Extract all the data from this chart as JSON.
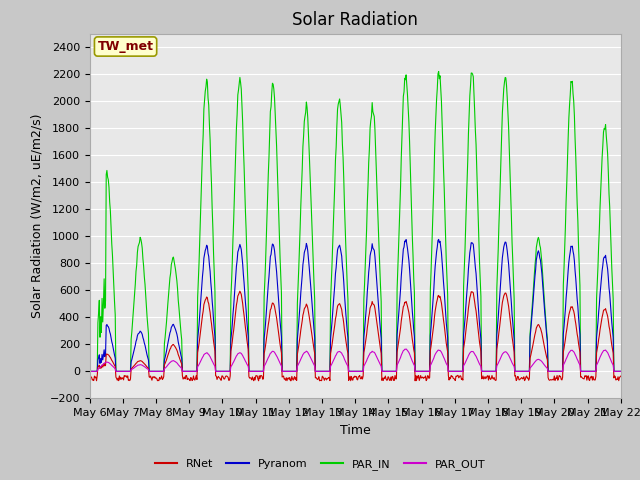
{
  "title": "Solar Radiation",
  "ylabel": "Solar Radiation (W/m2, uE/m2/s)",
  "xlabel": "Time",
  "ylim": [
    -200,
    2500
  ],
  "yticks": [
    -200,
    0,
    200,
    400,
    600,
    800,
    1000,
    1200,
    1400,
    1600,
    1800,
    2000,
    2200,
    2400
  ],
  "start_day": 6,
  "end_day": 21,
  "n_days": 16,
  "colors": {
    "RNet": "#cc0000",
    "Pyranom": "#0000cc",
    "PAR_IN": "#00cc00",
    "PAR_OUT": "#cc00cc"
  },
  "legend_labels": [
    "RNet",
    "Pyranom",
    "PAR_IN",
    "PAR_OUT"
  ],
  "annotation_text": "TW_met",
  "annotation_color": "#800000",
  "annotation_bg": "#ffffcc",
  "annotation_border": "#999900",
  "fig_bg": "#c8c8c8",
  "plot_bg": "#e8e8e8",
  "grid_color": "#ffffff",
  "title_fontsize": 12,
  "label_fontsize": 9,
  "tick_fontsize": 8,
  "day_peaks_PAR": [
    1500,
    1000,
    850,
    2200,
    2200,
    2150,
    2000,
    2050,
    2000,
    2250,
    2250,
    2250,
    2250,
    1000,
    2200,
    1850
  ],
  "day_peaks_Pyr": [
    350,
    300,
    350,
    950,
    950,
    950,
    950,
    950,
    950,
    1000,
    990,
    970,
    990,
    900,
    950,
    870
  ],
  "day_peaks_RNet": [
    130,
    80,
    200,
    560,
    600,
    510,
    500,
    510,
    520,
    530,
    570,
    600,
    600,
    350,
    490,
    470
  ],
  "day_peaks_PAROUT": [
    70,
    50,
    80,
    140,
    140,
    150,
    150,
    150,
    150,
    170,
    160,
    150,
    150,
    90,
    160,
    160
  ]
}
